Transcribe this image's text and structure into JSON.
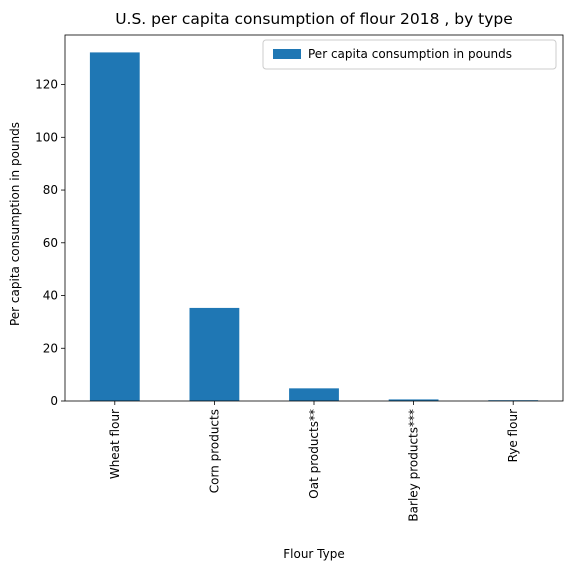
{
  "chart_data": {
    "type": "bar",
    "title": "U.S. per capita consumption of flour 2018 , by type",
    "xlabel": "Flour Type",
    "ylabel": "Per capita consumption in pounds",
    "categories": [
      "Wheat flour",
      "Corn products",
      "Oat products**",
      "Barley products***",
      "Rye flour"
    ],
    "series": [
      {
        "name": "Per capita consumption in pounds",
        "values": [
          132.2,
          35.3,
          4.8,
          0.6,
          0.3
        ]
      }
    ],
    "ylim": [
      0,
      138.8
    ],
    "yticks": [
      0,
      20,
      40,
      60,
      80,
      100,
      120
    ],
    "grid": false,
    "legend": "top-right",
    "colors": {
      "bar": "#1f77b4"
    }
  }
}
